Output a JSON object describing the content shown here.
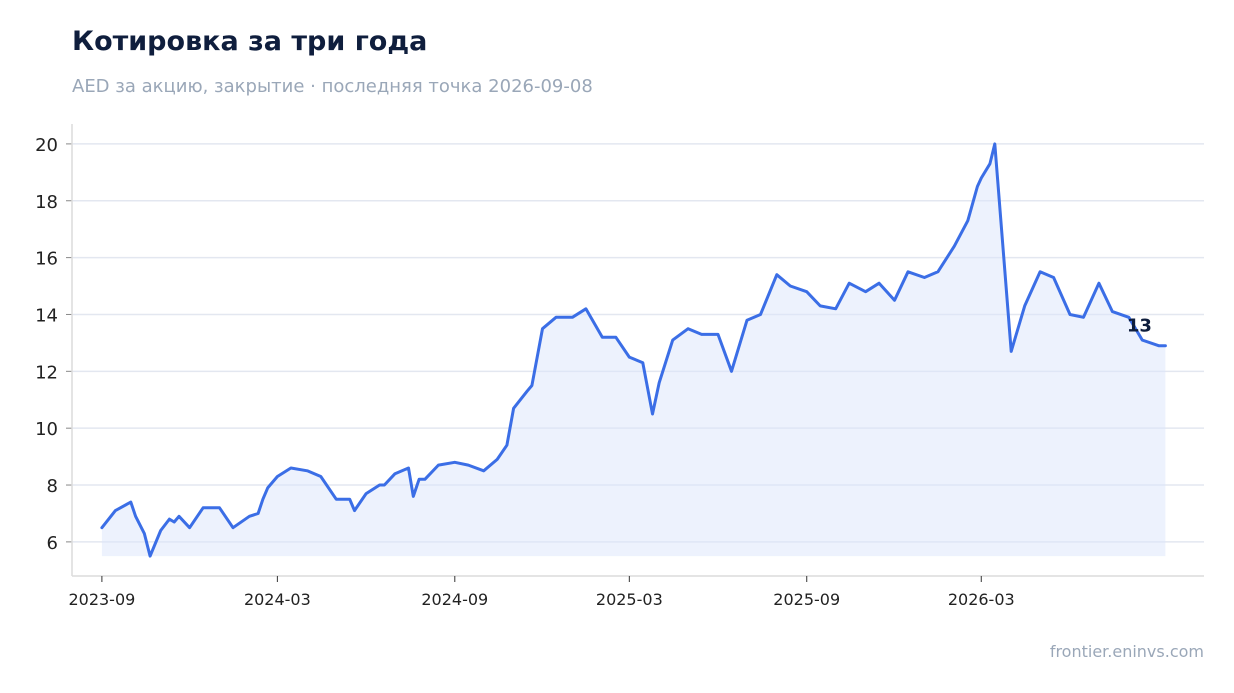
{
  "title": "Котировка за три года",
  "subtitle": "AED за акцию, закрытие · последняя точка 2026-09-08",
  "source": "frontier.eninvs.com",
  "colors": {
    "line": "#3b6ee6",
    "fill": "#dbe5fb",
    "grid": "#e3e7f0",
    "title": "#0f1e3d",
    "muted": "#9aa7b8"
  },
  "chart_data": {
    "type": "line",
    "title": "Котировка за три года",
    "subtitle": "AED за акцию, закрытие · последняя точка 2026-09-08",
    "xlabel": "",
    "ylabel": "",
    "ylim": [
      4.8,
      20.7
    ],
    "yticks": [
      6,
      8,
      10,
      12,
      14,
      16,
      18,
      20
    ],
    "xticks": [
      "2023-09",
      "2024-03",
      "2024-09",
      "2025-03",
      "2025-09",
      "2026-03"
    ],
    "grid": "horizontal",
    "last_label": "13",
    "series": [
      {
        "x": [
          "2023-09-01",
          "2023-09-15",
          "2023-10-01",
          "2023-10-06",
          "2023-10-15",
          "2023-10-21",
          "2023-11-01",
          "2023-11-10",
          "2023-11-15",
          "2023-11-20",
          "2023-12-01",
          "2023-12-15",
          "2024-01-01",
          "2024-01-15",
          "2024-02-01",
          "2024-02-10",
          "2024-02-15",
          "2024-02-20",
          "2024-03-01",
          "2024-03-15",
          "2024-04-01",
          "2024-04-15",
          "2024-05-01",
          "2024-05-15",
          "2024-05-20",
          "2024-06-01",
          "2024-06-15",
          "2024-06-20",
          "2024-07-01",
          "2024-07-15",
          "2024-07-20",
          "2024-07-26",
          "2024-08-01",
          "2024-08-15",
          "2024-09-01",
          "2024-09-15",
          "2024-10-01",
          "2024-10-15",
          "2024-10-25",
          "2024-11-01",
          "2024-11-15",
          "2024-11-20",
          "2024-12-01",
          "2024-12-15",
          "2025-01-01",
          "2025-01-15",
          "2025-02-01",
          "2025-02-15",
          "2025-03-01",
          "2025-03-15",
          "2025-03-25",
          "2025-04-01",
          "2025-04-15",
          "2025-05-01",
          "2025-05-15",
          "2025-06-01",
          "2025-06-15",
          "2025-07-01",
          "2025-07-15",
          "2025-08-01",
          "2025-08-15",
          "2025-09-01",
          "2025-09-15",
          "2025-10-01",
          "2025-10-15",
          "2025-11-01",
          "2025-11-15",
          "2025-12-01",
          "2025-12-15",
          "2026-01-01",
          "2026-01-15",
          "2026-02-01",
          "2026-02-15",
          "2026-02-25",
          "2026-03-01",
          "2026-03-10",
          "2026-03-15",
          "2026-04-01",
          "2026-04-15",
          "2026-05-01",
          "2026-05-15",
          "2026-06-01",
          "2026-06-15",
          "2026-07-01",
          "2026-07-15",
          "2026-08-01",
          "2026-08-15",
          "2026-09-01",
          "2026-09-08"
        ],
        "y": [
          6.5,
          7.1,
          7.4,
          6.9,
          6.3,
          5.5,
          6.4,
          6.8,
          6.7,
          6.9,
          6.5,
          7.2,
          7.2,
          6.5,
          6.9,
          7.0,
          7.5,
          7.9,
          8.3,
          8.6,
          8.5,
          8.3,
          7.5,
          7.5,
          7.1,
          7.7,
          8.0,
          8.0,
          8.4,
          8.6,
          7.6,
          8.2,
          8.2,
          8.7,
          8.8,
          8.7,
          8.5,
          8.9,
          9.4,
          10.7,
          11.3,
          11.5,
          13.5,
          13.9,
          13.9,
          14.2,
          13.2,
          13.2,
          12.5,
          12.3,
          10.5,
          11.6,
          13.1,
          13.5,
          13.3,
          13.3,
          12.0,
          13.8,
          14.0,
          15.4,
          15.0,
          14.8,
          14.3,
          14.2,
          15.1,
          14.8,
          15.1,
          14.5,
          15.5,
          15.3,
          15.5,
          16.4,
          17.3,
          18.5,
          18.8,
          19.3,
          20.0,
          12.7,
          14.3,
          15.5,
          15.3,
          14.0,
          13.9,
          15.1,
          14.1,
          13.9,
          13.1,
          12.9,
          12.9
        ]
      }
    ]
  }
}
